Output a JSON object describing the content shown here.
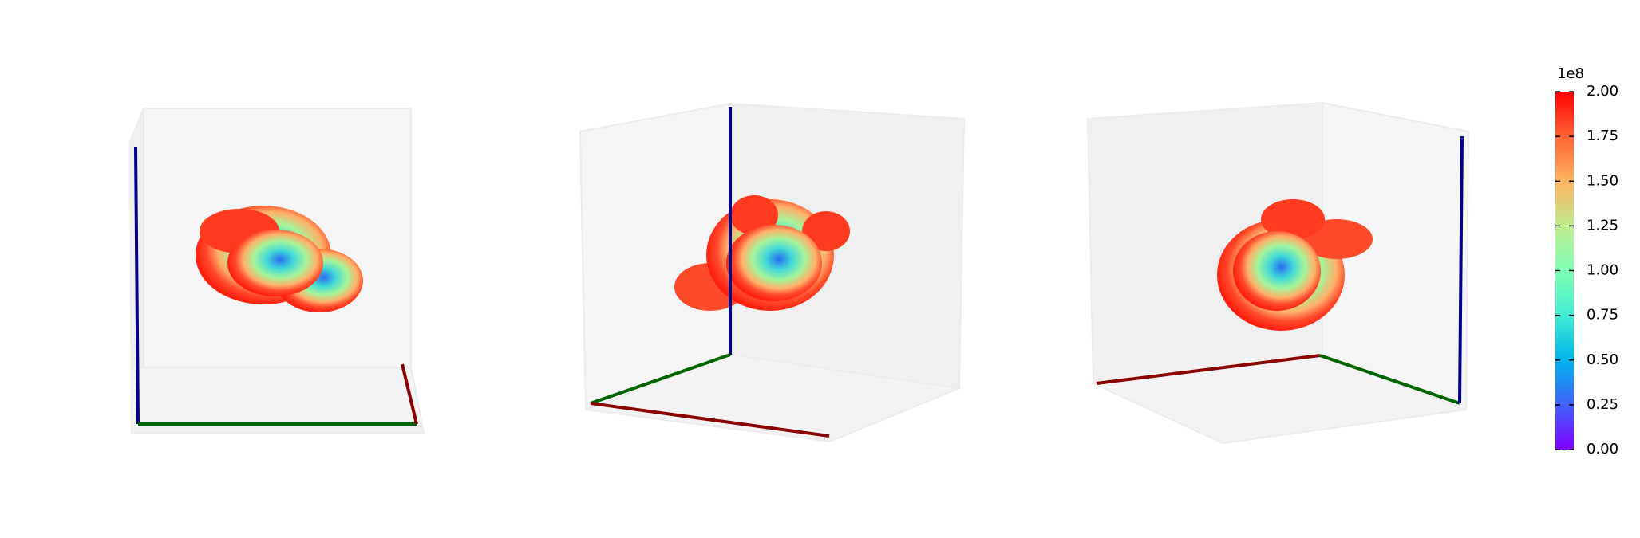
{
  "chart_data": {
    "type": "scatter3d",
    "colorbar": {
      "colormap": "rainbow",
      "offset_label": "1e8",
      "clim": [
        0,
        2
      ],
      "ticks": [
        {
          "value": 0,
          "label": "0.00"
        },
        {
          "value": 0.25,
          "label": "0.25"
        },
        {
          "value": 0.5,
          "label": "0.50"
        },
        {
          "value": 0.75,
          "label": "0.75"
        },
        {
          "value": 1,
          "label": "1.00"
        },
        {
          "value": 1.25,
          "label": "1.25"
        },
        {
          "value": 1.5,
          "label": "1.50"
        },
        {
          "value": 1.75,
          "label": "1.75"
        },
        {
          "value": 2,
          "label": "2.00"
        }
      ]
    }
  }
}
